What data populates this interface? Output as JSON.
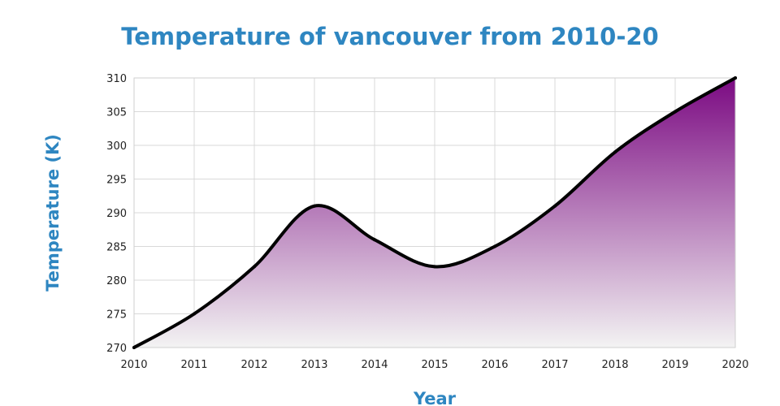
{
  "chart_data": {
    "type": "area",
    "title": "Temperature of vancouver from 2010-20",
    "xlabel": "Year",
    "ylabel": "Temperature (K)",
    "x": [
      2010,
      2011,
      2012,
      2013,
      2014,
      2015,
      2016,
      2017,
      2018,
      2019,
      2020
    ],
    "series": [
      {
        "values": [
          270,
          275,
          282,
          291,
          286,
          282,
          285,
          291,
          299,
          305,
          310
        ]
      }
    ],
    "xlim": [
      2010,
      2020
    ],
    "ylim": [
      270,
      310
    ],
    "yticks": [
      270,
      275,
      280,
      285,
      290,
      295,
      300,
      305,
      310
    ],
    "xticks": [
      2010,
      2011,
      2012,
      2013,
      2014,
      2015,
      2016,
      2017,
      2018,
      2019,
      2020
    ],
    "grid": true,
    "line_color": "#000000",
    "fill_top_color": "#7b0a82",
    "fill_bottom_color": "#f3f3f3",
    "title_color": "#2e86c1"
  }
}
